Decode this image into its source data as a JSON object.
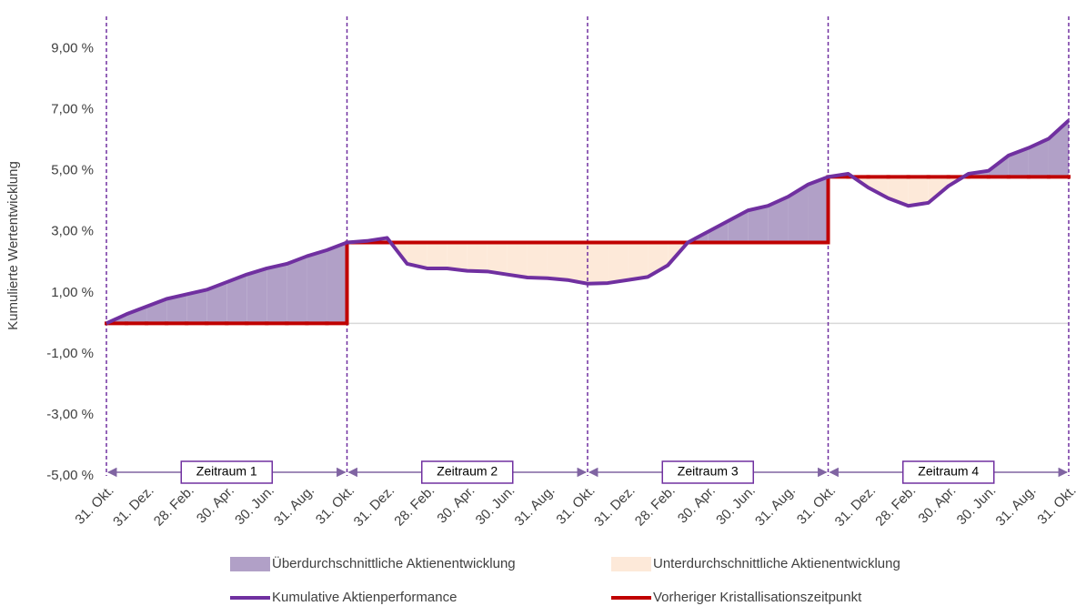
{
  "chart_data": {
    "type": "line",
    "y_label": "Kumulierte Wertentwicklung",
    "categories": [
      "31. Okt.",
      null,
      "31. Dez.",
      null,
      "28. Feb.",
      null,
      "30. Apr.",
      null,
      "30. Jun.",
      null,
      "31. Aug.",
      null,
      "31. Okt.",
      null,
      "31. Dez.",
      null,
      "28. Feb.",
      null,
      "30. Apr.",
      null,
      "30. Jun.",
      null,
      "31. Aug.",
      null,
      "31. Okt.",
      null,
      "31. Dez.",
      null,
      "28. Feb.",
      null,
      "30. Apr.",
      null,
      "30. Jun.",
      null,
      "31. Aug.",
      null,
      "31. Okt.",
      null,
      "31. Dez.",
      null,
      "28. Feb.",
      null,
      "30. Apr.",
      null,
      "30. Jun.",
      null,
      "31. Aug.",
      null,
      "31. Okt."
    ],
    "series": [
      {
        "name": "Kumulative Aktienperformance",
        "color": "#7030a0",
        "values": [
          0,
          0.3,
          0.55,
          0.8,
          0.95,
          1.1,
          1.35,
          1.6,
          1.8,
          1.95,
          2.2,
          2.4,
          2.65,
          2.7,
          2.8,
          1.95,
          1.8,
          1.8,
          1.72,
          1.7,
          1.6,
          1.5,
          1.48,
          1.42,
          1.3,
          1.32,
          1.42,
          1.52,
          1.9,
          2.65,
          3.0,
          3.35,
          3.7,
          3.85,
          4.15,
          4.55,
          4.8,
          4.9,
          4.45,
          4.1,
          3.85,
          3.95,
          4.5,
          4.9,
          5.0,
          5.5,
          5.75,
          6.05,
          6.65
        ]
      },
      {
        "name": "Vorheriger Kristallisationszeitpunkt",
        "color": "#c00000",
        "step": true,
        "values": [
          0,
          0,
          0,
          0,
          0,
          0,
          0,
          0,
          0,
          0,
          0,
          0,
          2.65,
          2.65,
          2.65,
          2.65,
          2.65,
          2.65,
          2.65,
          2.65,
          2.65,
          2.65,
          2.65,
          2.65,
          2.65,
          2.65,
          2.65,
          2.65,
          2.65,
          2.65,
          2.65,
          2.65,
          2.65,
          2.65,
          2.65,
          2.65,
          4.8,
          4.8,
          4.8,
          4.8,
          4.8,
          4.8,
          4.8,
          4.8,
          4.8,
          4.8,
          4.8,
          4.8,
          4.8
        ]
      }
    ],
    "areas": [
      {
        "name": "Überdurchschnittliche Aktienentwicklung",
        "color": "#b1a0c7"
      },
      {
        "name": "Unterdurchschnittliche Aktienentwicklung",
        "color": "#fde9d9"
      }
    ],
    "periods": [
      "Zeitraum 1",
      "Zeitraum 2",
      "Zeitraum 3",
      "Zeitraum 4"
    ],
    "ylim": [
      -5,
      10
    ],
    "yticks": [
      {
        "value": -5,
        "label": "-5,00 %"
      },
      {
        "value": -3,
        "label": "-3,00 %"
      },
      {
        "value": -1,
        "label": "-1,00 %"
      },
      {
        "value": 1,
        "label": "1,00 %"
      },
      {
        "value": 3,
        "label": "3,00 %"
      },
      {
        "value": 5,
        "label": "5,00 %"
      },
      {
        "value": 7,
        "label": "7,00 %"
      },
      {
        "value": 9,
        "label": "9,00 %"
      }
    ],
    "grid": false
  }
}
